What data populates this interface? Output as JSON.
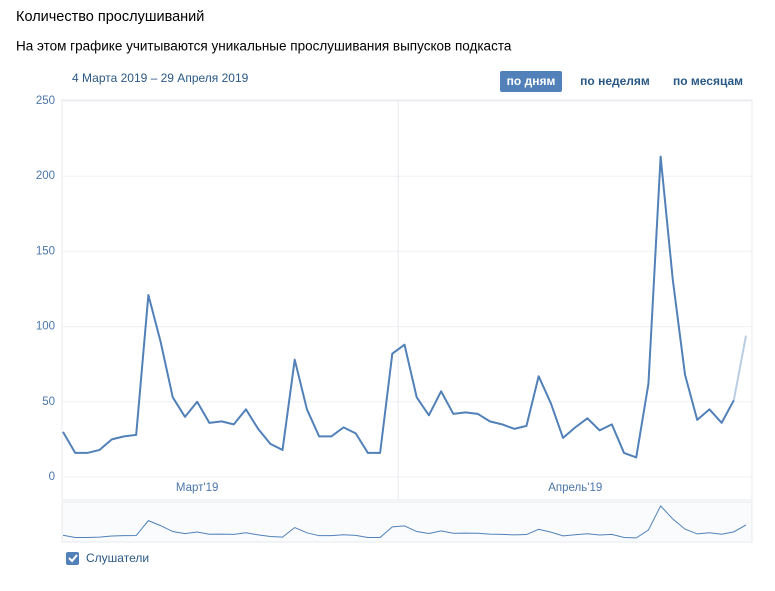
{
  "header": {
    "title": "Количество прослушиваний",
    "subtitle": "На этом графике учитываются уникальные прослушивания выпусков подкаста"
  },
  "controls": {
    "date_range": "4 Марта 2019 – 29 Апреля 2019",
    "periods": [
      "по дням",
      "по неделям",
      "по месяцам"
    ],
    "active": 0
  },
  "chart_data": {
    "type": "line",
    "categories": [
      null,
      null,
      null,
      null,
      null,
      null,
      null,
      null,
      null,
      null,
      null,
      "Март'19",
      null,
      null,
      null,
      null,
      null,
      null,
      null,
      null,
      null,
      null,
      null,
      null,
      null,
      null,
      null,
      null,
      null,
      null,
      null,
      null,
      null,
      null,
      null,
      null,
      null,
      null,
      null,
      null,
      null,
      null,
      "Апрель'19",
      null,
      null,
      null,
      null,
      null,
      null,
      null,
      null,
      null,
      null,
      null,
      null,
      null,
      null
    ],
    "series": [
      {
        "name": "Слушатели",
        "color": "#5181b8",
        "values": [
          30,
          16,
          16,
          18,
          25,
          27,
          28,
          121,
          90,
          53,
          40,
          50,
          36,
          37,
          35,
          45,
          32,
          22,
          18,
          78,
          45,
          27,
          27,
          33,
          29,
          16,
          16,
          82,
          88,
          53,
          41,
          57,
          42,
          43,
          42,
          37,
          35,
          32,
          34,
          67,
          49,
          26,
          33,
          39,
          31,
          35,
          16,
          13,
          62,
          213,
          131,
          68,
          38,
          45,
          36,
          51,
          94
        ]
      }
    ],
    "ylim": [
      0,
      250
    ],
    "yticks": [
      0,
      50,
      100,
      150,
      200,
      250
    ],
    "grid": true
  }
}
